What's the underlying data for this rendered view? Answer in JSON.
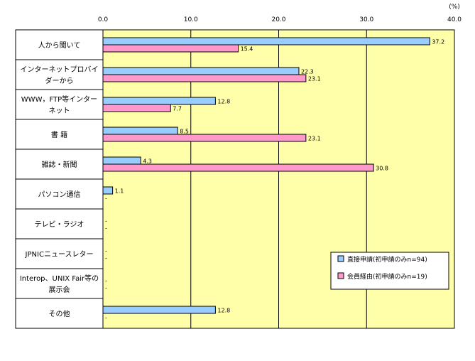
{
  "chart_data": {
    "type": "bar",
    "orientation": "horizontal",
    "unit_label": "(%)",
    "xlim": [
      0,
      40
    ],
    "ticks": [
      "0.0",
      "10.0",
      "20.0",
      "30.0",
      "40.0"
    ],
    "tick_values": [
      0,
      10,
      20,
      30,
      40
    ],
    "categories": [
      [
        "人から聞いて"
      ],
      [
        "インターネットプロバイ",
        "ダーから"
      ],
      [
        "WWW，FTP等インター",
        "ネット"
      ],
      [
        "書  籍"
      ],
      [
        "雑誌・新聞"
      ],
      [
        "パソコン通信"
      ],
      [
        "テレビ・ラジオ"
      ],
      [
        "JPNICニュースレター"
      ],
      [
        "Interop、UNIX Fair等の",
        "展示会"
      ],
      [
        "その他"
      ]
    ],
    "series": [
      {
        "name": "直接申請(初申請のみn=94)",
        "color": "#99ccff",
        "values": [
          37.2,
          22.3,
          12.8,
          8.5,
          4.3,
          1.1,
          null,
          null,
          null,
          12.8
        ],
        "labels": [
          "37.2",
          "22.3",
          "12.8",
          "8.5",
          "4.3",
          "1.1",
          "-",
          "-",
          "-",
          "12.8"
        ]
      },
      {
        "name": "会員経由(初申請のみn=19)",
        "color": "#ff99cc",
        "values": [
          15.4,
          23.1,
          7.7,
          23.1,
          30.8,
          null,
          null,
          null,
          null,
          null
        ],
        "labels": [
          "15.4",
          "23.1",
          "7.7",
          "23.1",
          "30.8",
          "-",
          "-",
          "-",
          "-",
          "-"
        ]
      }
    ],
    "legend_position": "bottom-right",
    "plot_background": "#ffffaa",
    "grid": true
  }
}
